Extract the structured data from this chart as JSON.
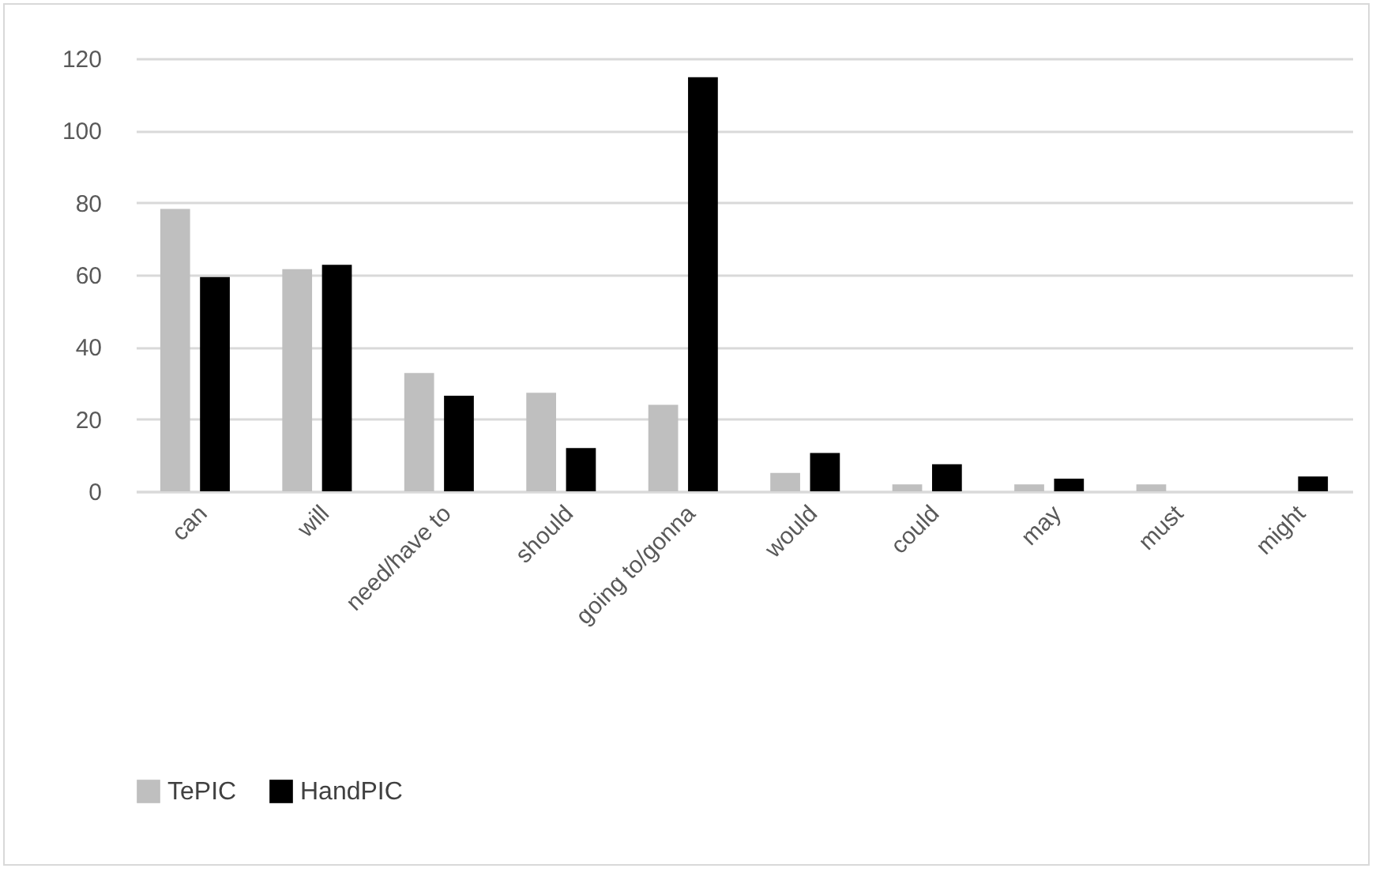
{
  "chart_data": {
    "type": "bar",
    "categories": [
      "can",
      "will",
      "need/have to",
      "should",
      "going to/gonna",
      "would",
      "could",
      "may",
      "must",
      "might"
    ],
    "series": [
      {
        "name": "TePIC",
        "color": "#bfbfbf",
        "values": [
          78.3,
          61.6,
          32.8,
          27.3,
          24,
          5.1,
          1.9,
          1.9,
          1.9,
          0
        ]
      },
      {
        "name": "HandPIC",
        "color": "#000000",
        "values": [
          59.4,
          62.8,
          26.5,
          12,
          114.8,
          10.6,
          7.5,
          3.5,
          0,
          4.1
        ]
      }
    ],
    "ylim": [
      0,
      120
    ],
    "yticks": [
      0,
      20,
      40,
      60,
      80,
      100,
      120
    ],
    "grid": "y",
    "legend": "bottom"
  }
}
